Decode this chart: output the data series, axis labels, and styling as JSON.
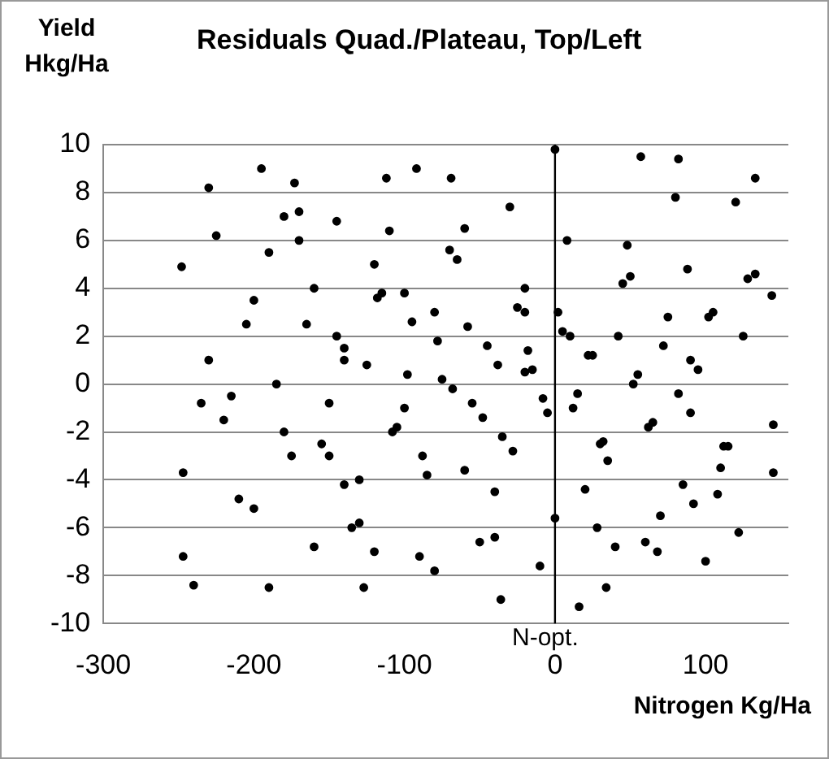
{
  "chart_data": {
    "type": "scatter",
    "title": "Residuals Quad./Plateau, Top/Left",
    "ylabel": "Yield Hkg/Ha",
    "xlabel": "Nitrogen Kg/Ha",
    "marker": "circle",
    "grid": "y",
    "legend": false,
    "xlim": [
      -300,
      155
    ],
    "xticks": [
      -300,
      -200,
      -100,
      0,
      100
    ],
    "ylim": [
      -10,
      10
    ],
    "yticks": [
      -10,
      -8,
      -6,
      -4,
      -2,
      0,
      2,
      4,
      6,
      8,
      10
    ],
    "ref_lines": [
      {
        "axis": "x",
        "value": 0,
        "label": "N-opt.",
        "color": "#000000"
      }
    ],
    "series": [
      {
        "color": "#000000",
        "x": [
          -195,
          -173,
          -92,
          -112,
          -69,
          0,
          133,
          57,
          82,
          -248,
          -247,
          -247,
          -240,
          -190,
          -127,
          -36,
          16,
          34,
          145,
          145,
          144,
          133,
          -230,
          -215,
          -205,
          -180,
          -160,
          -150,
          -140,
          -120,
          -100,
          -80,
          -60,
          -40,
          -20,
          10,
          30,
          50,
          70,
          90,
          110,
          125,
          -220,
          -200,
          -185,
          -170,
          -155,
          -145,
          -135,
          -125,
          -115,
          -105,
          -95,
          -85,
          -75,
          -65,
          -55,
          -45,
          -35,
          -25,
          -15,
          -5,
          5,
          15,
          25,
          35,
          45,
          55,
          65,
          75,
          85,
          95,
          105,
          115,
          -210,
          -190,
          -175,
          -165,
          -150,
          -140,
          -130,
          -118,
          -108,
          -98,
          -88,
          -78,
          -68,
          -58,
          -48,
          -38,
          -28,
          -18,
          -8,
          2,
          12,
          22,
          32,
          42,
          52,
          62,
          72,
          82,
          92,
          102,
          112,
          122,
          -235,
          -225,
          -200,
          -180,
          -160,
          -145,
          -130,
          -110,
          -90,
          -70,
          -50,
          -30,
          -10,
          8,
          28,
          48,
          68,
          88,
          108,
          128,
          -140,
          -100,
          -60,
          -20,
          20,
          60,
          100,
          -120,
          -80,
          -40,
          0,
          40,
          80,
          120,
          -230,
          -170,
          -20,
          90
        ],
        "values": [
          9.0,
          8.4,
          9.0,
          8.6,
          8.6,
          9.8,
          8.6,
          9.5,
          9.4,
          4.9,
          -3.7,
          -7.2,
          -8.4,
          -8.5,
          -8.5,
          -9.0,
          -9.3,
          -8.5,
          -1.7,
          -3.7,
          3.7,
          4.6,
          1.0,
          -0.5,
          2.5,
          -2.0,
          4.0,
          -3.0,
          1.5,
          5.0,
          -1.0,
          3.0,
          6.5,
          -4.5,
          0.5,
          2.0,
          -2.5,
          4.5,
          -5.5,
          1.0,
          -3.5,
          2.0,
          -1.5,
          3.5,
          0.0,
          6.0,
          -2.5,
          2.0,
          -6.0,
          0.8,
          3.8,
          -1.8,
          2.6,
          -3.8,
          0.2,
          5.2,
          -0.8,
          1.6,
          -2.2,
          3.2,
          0.6,
          -1.2,
          2.2,
          -0.4,
          1.2,
          -3.2,
          4.2,
          0.4,
          -1.6,
          2.8,
          -4.2,
          0.6,
          3.0,
          -2.6,
          -4.8,
          5.5,
          -3.0,
          2.5,
          -0.8,
          1.0,
          -4.0,
          3.6,
          -2.0,
          0.4,
          -3.0,
          1.8,
          -0.2,
          2.4,
          -1.4,
          0.8,
          -2.8,
          1.4,
          -0.6,
          3.0,
          -1.0,
          1.2,
          -2.4,
          2.0,
          0.0,
          -1.8,
          1.6,
          -0.4,
          -5.0,
          2.8,
          -2.6,
          -6.2,
          -0.8,
          6.2,
          -5.2,
          7.0,
          -6.8,
          6.8,
          -5.8,
          6.4,
          -7.2,
          5.6,
          -6.6,
          7.4,
          -7.6,
          6.0,
          -6.0,
          5.8,
          -7.0,
          4.8,
          -4.6,
          4.4,
          -4.2,
          3.8,
          -3.6,
          4.0,
          -4.4,
          -6.6,
          -7.4,
          -7.0,
          -7.8,
          -6.4,
          -5.6,
          -6.8,
          7.8,
          7.6,
          8.2,
          7.2,
          3.0,
          -1.2
        ]
      }
    ]
  }
}
